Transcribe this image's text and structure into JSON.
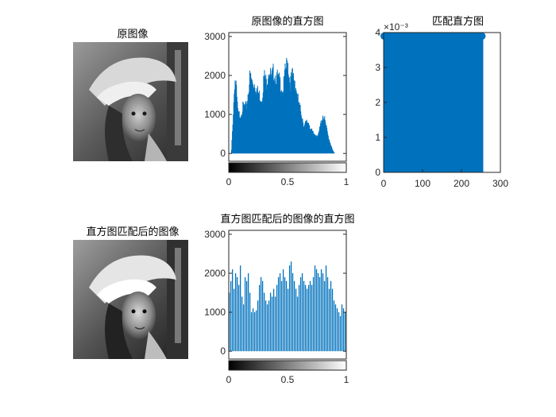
{
  "figure": {
    "image_top": {
      "title": "原图像",
      "description": "grayscale portrait photo (woman wearing a wide-brimmed hat)"
    },
    "image_bottom": {
      "title": "直方图匹配后的图像",
      "description": "grayscale portrait photo after histogram matching"
    }
  },
  "chart_data": [
    {
      "id": "hist_original",
      "type": "bar",
      "title": "原图像的直方图",
      "xlabel": "",
      "ylabel": "",
      "xlim": [
        0,
        1
      ],
      "ylim": [
        -200,
        3100
      ],
      "xticks": [
        "0",
        "0.5",
        "1"
      ],
      "yticks": [
        "0",
        "1000",
        "2000",
        "3000"
      ],
      "ytick_values": [
        0,
        1000,
        2000,
        3000
      ],
      "xtick_values": [
        0,
        0.5,
        1
      ],
      "colorbar": "grayscale gradient black to white",
      "bar_color": "#0072BD",
      "bins": 256,
      "envelope_x": [
        0.0,
        0.02,
        0.03,
        0.05,
        0.06,
        0.07,
        0.08,
        0.1,
        0.12,
        0.15,
        0.18,
        0.2,
        0.22,
        0.24,
        0.26,
        0.28,
        0.3,
        0.32,
        0.34,
        0.36,
        0.38,
        0.4,
        0.42,
        0.44,
        0.46,
        0.48,
        0.5,
        0.52,
        0.54,
        0.56,
        0.58,
        0.6,
        0.62,
        0.64,
        0.66,
        0.68,
        0.7,
        0.72,
        0.74,
        0.76,
        0.78,
        0.8,
        0.82,
        0.84,
        0.86,
        0.88,
        0.9,
        1.0
      ],
      "envelope_y": [
        0,
        0,
        600,
        1900,
        1800,
        1300,
        1000,
        1000,
        1200,
        1200,
        2000,
        1800,
        1800,
        1600,
        1500,
        1400,
        2000,
        1800,
        2200,
        1900,
        2100,
        2000,
        1900,
        1800,
        1600,
        2100,
        2400,
        1800,
        2000,
        1900,
        1500,
        1200,
        1000,
        700,
        800,
        800,
        600,
        500,
        500,
        450,
        750,
        1000,
        800,
        500,
        300,
        100,
        0,
        0
      ]
    },
    {
      "id": "hist_target",
      "type": "bar",
      "title": "匹配直方图",
      "exponent_label": "×10⁻³",
      "xlim": [
        0,
        300
      ],
      "ylim": [
        0,
        4
      ],
      "xticks": [
        "0",
        "100",
        "200",
        "300"
      ],
      "xtick_values": [
        0,
        100,
        200,
        300
      ],
      "yticks": [
        "0",
        "1",
        "2",
        "3",
        "4"
      ],
      "ytick_values": [
        0,
        1,
        2,
        3,
        4
      ],
      "bar_color": "#0072BD",
      "x_range": [
        1,
        256
      ],
      "constant_value": 3.9
    },
    {
      "id": "hist_matched",
      "type": "bar",
      "title": "直方图匹配后的图像的直方图",
      "xlim": [
        0,
        1
      ],
      "ylim": [
        -200,
        3100
      ],
      "xticks": [
        "0",
        "0.5",
        "1"
      ],
      "xtick_values": [
        0,
        0.5,
        1
      ],
      "yticks": [
        "0",
        "1000",
        "2000",
        "3000"
      ],
      "ytick_values": [
        0,
        1000,
        2000,
        3000
      ],
      "colorbar": "grayscale gradient black to white",
      "bar_color": "#0072BD",
      "bin_step": 0.0135,
      "values": [
        1500,
        1800,
        2100,
        1600,
        2000,
        1900,
        1700,
        2200,
        1400,
        1200,
        1900,
        1800,
        2000,
        1500,
        1000,
        1100,
        1000,
        1050,
        1300,
        1700,
        1900,
        1800,
        1500,
        1300,
        1200,
        1300,
        1500,
        1400,
        1600,
        1400,
        1700,
        1900,
        2000,
        1800,
        2100,
        1900,
        1800,
        1600,
        2200,
        2300,
        2000,
        1800,
        1600,
        1400,
        1700,
        1900,
        2000,
        1800,
        1700,
        1600,
        1700,
        1800,
        1700,
        1900,
        2200,
        2100,
        2000,
        1900,
        2100,
        2000,
        1800,
        2200,
        1900,
        1600,
        1800,
        1600,
        1300,
        1200,
        1100,
        1000,
        900,
        1200,
        1100,
        1000,
        1400,
        1500,
        1200,
        1300,
        1400,
        1000,
        1100,
        1500,
        1700,
        1800,
        1200,
        1100,
        1400,
        1600,
        1700,
        1500,
        1300,
        1400,
        1600,
        1800
      ]
    }
  ]
}
